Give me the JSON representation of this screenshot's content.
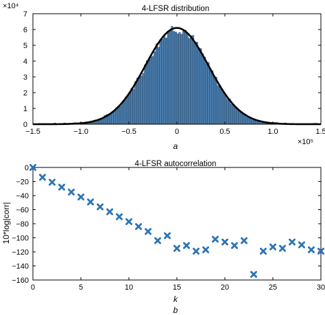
{
  "chart_data": [
    {
      "type": "bar",
      "title": "4-LFSR distribution",
      "caption": "a",
      "xlabel": "",
      "ylabel": "",
      "x_multiplier": "×10⁵",
      "y_multiplier": "×10⁴",
      "xlim": [
        -1.5,
        1.5
      ],
      "ylim": [
        0,
        7
      ],
      "xticks": [
        "−1.5",
        "−1.0",
        "−0.5",
        "0",
        "0.5",
        "1.0",
        "1.5"
      ],
      "xtick_values": [
        -1.5,
        -1.0,
        -0.5,
        0,
        0.5,
        1.0,
        1.5
      ],
      "yticks": [
        "0",
        "1",
        "2",
        "3",
        "4",
        "5",
        "6",
        "7"
      ],
      "ytick_values": [
        0,
        1,
        2,
        3,
        4,
        5,
        6,
        7
      ],
      "histogram": {
        "bins": 150,
        "range": [
          -1.5,
          1.5
        ],
        "peak": 6.1,
        "sigma": 0.33,
        "seed": 7
      },
      "fit_curve": {
        "peak": 6.1,
        "mean": 0.0,
        "sigma": 0.33
      },
      "colors": {
        "bars": "#4a7fb0",
        "bar_edge": "#1e3a5a",
        "fit": "#000000"
      }
    },
    {
      "type": "scatter",
      "title": "4-LFSR autocorrelation",
      "caption": "b",
      "xlabel": "k",
      "ylabel": "10*log|corr|",
      "xlim": [
        0,
        30
      ],
      "ylim": [
        -160,
        0
      ],
      "xticks": [
        "0",
        "5",
        "10",
        "15",
        "20",
        "25",
        "30"
      ],
      "xtick_values": [
        0,
        5,
        10,
        15,
        20,
        25,
        30
      ],
      "yticks": [
        "0",
        "−20",
        "−40",
        "−60",
        "−80",
        "−100",
        "−120",
        "−140",
        "−160"
      ],
      "ytick_values": [
        0,
        -20,
        -40,
        -60,
        -80,
        -100,
        -120,
        -140,
        -160
      ],
      "x": [
        0,
        1,
        2,
        3,
        4,
        5,
        6,
        7,
        8,
        9,
        10,
        11,
        12,
        13,
        14,
        15,
        16,
        17,
        18,
        19,
        20,
        21,
        22,
        23,
        24,
        25,
        26,
        27,
        28,
        29,
        30
      ],
      "y": [
        0,
        -14,
        -21,
        -28,
        -35,
        -42,
        -49,
        -56,
        -63,
        -70,
        -77,
        -84,
        -91,
        -104,
        -97,
        -115,
        -111,
        -119,
        -117,
        -102,
        -106,
        -111,
        -104,
        -152,
        -119,
        -113,
        -115,
        -106,
        -110,
        -117,
        -119
      ],
      "colors": {
        "marker": "#2b74b5"
      }
    }
  ]
}
